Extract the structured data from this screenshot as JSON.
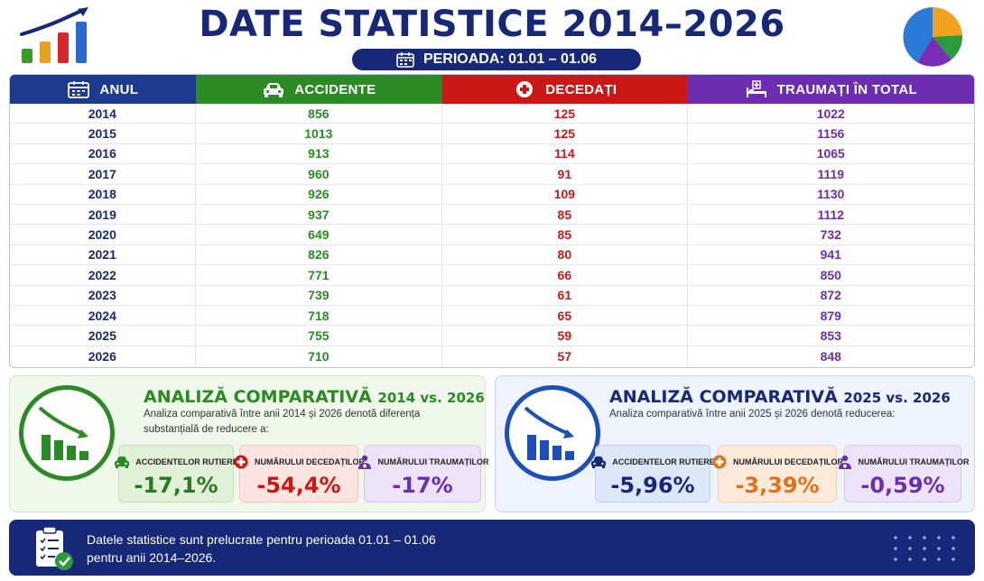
{
  "title": "DATE STATISTICE 2014–2026",
  "period": "PERIOADA: 01.01 – 01.06",
  "icons": {
    "logo_left": "bar-chart-growth-icon",
    "logo_right": "pie-chart-icon"
  },
  "table": {
    "headers": {
      "year": "ANUL",
      "accidents": "ACCIDENTE",
      "deaths": "DECEDAȚI",
      "injured": "TRAUMAȚI ÎN TOTAL"
    },
    "rows": [
      {
        "year": "2014",
        "accidents": "856",
        "deaths": "125",
        "injured": "1022"
      },
      {
        "year": "2015",
        "accidents": "1013",
        "deaths": "125",
        "injured": "1156"
      },
      {
        "year": "2016",
        "accidents": "913",
        "deaths": "114",
        "injured": "1065"
      },
      {
        "year": "2017",
        "accidents": "960",
        "deaths": "91",
        "injured": "1119"
      },
      {
        "year": "2018",
        "accidents": "926",
        "deaths": "109",
        "injured": "1130"
      },
      {
        "year": "2019",
        "accidents": "937",
        "deaths": "85",
        "injured": "1112"
      },
      {
        "year": "2020",
        "accidents": "649",
        "deaths": "85",
        "injured": "732"
      },
      {
        "year": "2021",
        "accidents": "826",
        "deaths": "80",
        "injured": "941"
      },
      {
        "year": "2022",
        "accidents": "771",
        "deaths": "66",
        "injured": "850"
      },
      {
        "year": "2023",
        "accidents": "739",
        "deaths": "61",
        "injured": "872"
      },
      {
        "year": "2024",
        "accidents": "718",
        "deaths": "65",
        "injured": "879"
      },
      {
        "year": "2025",
        "accidents": "755",
        "deaths": "59",
        "injured": "853"
      },
      {
        "year": "2026",
        "accidents": "710",
        "deaths": "57",
        "injured": "848"
      }
    ]
  },
  "analysis1": {
    "title_main": "ANALIZĂ COMPARATIVĂ",
    "title_years": "2014 vs. 2026",
    "description": "Analiza comparativă între anii 2014 și 2026 denotă diferența substanțială de reducere a:",
    "cards": [
      {
        "label": "ACCIDENTELOR RUTIERE",
        "value": "-17,1%"
      },
      {
        "label": "NUMĂRULUI DECEDAȚILOR",
        "value": "-54,4%"
      },
      {
        "label": "NUMĂRULUI TRAUMAȚILOR",
        "value": "-17%"
      }
    ]
  },
  "analysis2": {
    "title_main": "ANALIZĂ COMPARATIVĂ",
    "title_years": "2025 vs. 2026",
    "description": "Analiza comparativă între anii 2025 și 2026 denotă reducerea:",
    "cards": [
      {
        "label": "ACCIDENTELOR RUTIERE",
        "value": "-5,96%"
      },
      {
        "label": "NUMĂRULUI DECEDAȚILOR",
        "value": "-3,39%"
      },
      {
        "label": "NUMĂRULUI TRAUMAȚILOR",
        "value": "-0,59%"
      }
    ]
  },
  "footer": {
    "line1": "Datele statistice sunt prelucrate pentru perioada 01.01 – 01.06",
    "line2": "pentru anii 2014–2026."
  },
  "colors": {
    "navy": "#172878",
    "green": "#2a8a23",
    "red": "#cc1717",
    "purple": "#6c2db0",
    "orange": "#e0721a"
  }
}
